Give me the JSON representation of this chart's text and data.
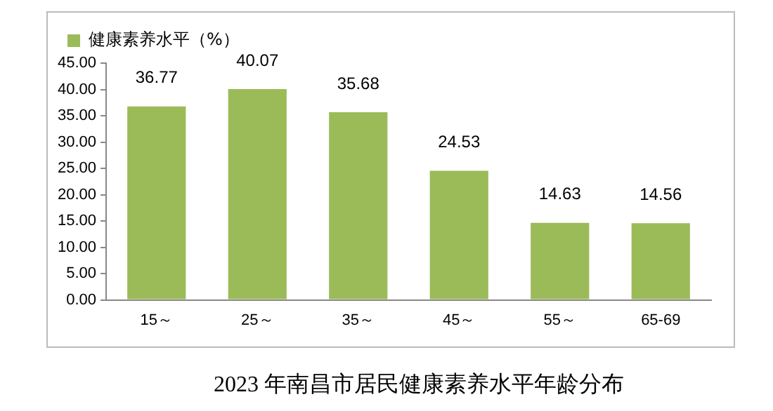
{
  "chart_data": {
    "type": "bar",
    "title": "2023 年南昌市居民健康素养水平年龄分布",
    "categories": [
      "15～",
      "25～",
      "35～",
      "45～",
      "55～",
      "65-69"
    ],
    "series": [
      {
        "name": "健康素养水平（%）",
        "color": "#9bbb59",
        "values": [
          36.77,
          40.07,
          35.68,
          24.53,
          14.63,
          14.56
        ]
      }
    ],
    "ylim": [
      0,
      45
    ],
    "yticks": [
      {
        "value": 0,
        "label": "0.00"
      },
      {
        "value": 5,
        "label": "5.00"
      },
      {
        "value": 10,
        "label": "10.00"
      },
      {
        "value": 15,
        "label": "15.00"
      },
      {
        "value": 20,
        "label": "20.00"
      },
      {
        "value": 25,
        "label": "25.00"
      },
      {
        "value": 30,
        "label": "30.00"
      },
      {
        "value": 35,
        "label": "35.00"
      },
      {
        "value": 40,
        "label": "40.00"
      },
      {
        "value": 45,
        "label": "45.00"
      }
    ],
    "grid": false,
    "legend": "top left",
    "data_labels": true
  }
}
